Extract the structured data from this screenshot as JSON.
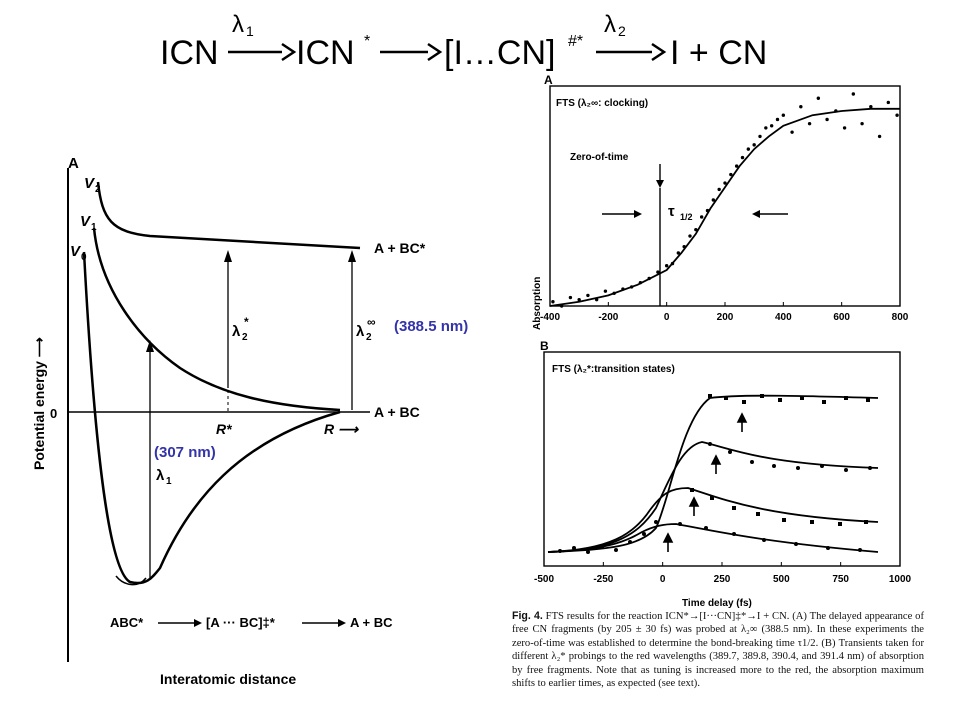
{
  "reaction_scheme": {
    "reactant": "ICN",
    "arrow1_label": "λ",
    "arrow1_sub": "1",
    "excited": "ICN",
    "excited_sup": "*",
    "ts_open": "[I…CN]",
    "ts_sup": "#*",
    "arrow3_label": "λ",
    "arrow3_sub": "2",
    "products": "I + CN"
  },
  "left_diagram": {
    "panel_label": "A",
    "y_axis_label": "Potential energy ⟶",
    "x_axis_label": "Interatomic distance",
    "curve_v2_label": "V",
    "curve_v2_sub": "2",
    "curve_v1_label": "V",
    "curve_v1_sub": "1",
    "curve_v0_label": "V",
    "curve_v0_sub": "0",
    "asymptote_upper": "A + BC*",
    "asymptote_lower": "A + BC",
    "zero_label": "0",
    "r_star_label": "R*",
    "r_label": "R ⟶",
    "lambda2_star_label": "λ",
    "lambda2_star_sub": "2",
    "lambda2_star_sup": "*",
    "lambda2_inf_label": "λ",
    "lambda2_inf_sub": "2",
    "lambda2_inf_sup": "∞",
    "lambda1_label": "λ",
    "lambda1_sub": "1",
    "annot_388": "(388.5 nm)",
    "annot_307": "(307 nm)",
    "scheme_left": "ABC*",
    "scheme_middle": "[A ··· BC]‡*",
    "scheme_right": "A + BC"
  },
  "chart_data": [
    {
      "type": "scatter",
      "panel": "A",
      "title": "FTS (λ₂∞: clocking)",
      "xlabel": "",
      "ylabel": "Absorption",
      "xlim": [
        -400,
        800
      ],
      "ylim": [
        0,
        1
      ],
      "xticks": [
        -400,
        -200,
        0,
        200,
        400,
        600,
        800
      ],
      "annotations": [
        "Zero-of-time",
        "τ 1/2"
      ],
      "fit": {
        "x": [
          -400,
          -300,
          -200,
          -100,
          0,
          50,
          100,
          150,
          200,
          250,
          300,
          350,
          400,
          500,
          600,
          700,
          800
        ],
        "y": [
          0.0,
          0.02,
          0.05,
          0.1,
          0.17,
          0.25,
          0.34,
          0.46,
          0.56,
          0.66,
          0.74,
          0.8,
          0.85,
          0.9,
          0.92,
          0.93,
          0.93
        ]
      },
      "points": {
        "x": [
          -390,
          -360,
          -330,
          -300,
          -270,
          -240,
          -210,
          -180,
          -150,
          -120,
          -90,
          -60,
          -30,
          0,
          20,
          40,
          60,
          80,
          100,
          120,
          140,
          160,
          180,
          200,
          220,
          240,
          260,
          280,
          300,
          320,
          340,
          360,
          380,
          400,
          430,
          460,
          490,
          520,
          550,
          580,
          610,
          640,
          670,
          700,
          730,
          760,
          790
        ],
        "y": [
          0.02,
          0.0,
          0.04,
          0.03,
          0.05,
          0.03,
          0.07,
          0.06,
          0.08,
          0.09,
          0.11,
          0.13,
          0.16,
          0.19,
          0.2,
          0.25,
          0.28,
          0.33,
          0.36,
          0.42,
          0.45,
          0.5,
          0.55,
          0.58,
          0.62,
          0.66,
          0.7,
          0.74,
          0.76,
          0.8,
          0.84,
          0.85,
          0.88,
          0.9,
          0.82,
          0.94,
          0.86,
          0.98,
          0.88,
          0.92,
          0.84,
          1.0,
          0.86,
          0.94,
          0.8,
          0.96,
          0.9
        ]
      }
    },
    {
      "type": "scatter",
      "panel": "B",
      "title": "FTS (λ₂*:transition states)",
      "xlabel": "Time delay (fs)",
      "ylabel": "",
      "xlim": [
        -500,
        1000
      ],
      "xticks": [
        -500,
        -250,
        0,
        250,
        500,
        750,
        1000
      ]
    }
  ],
  "right_figure": {
    "panel_a_label": "A",
    "panel_b_label": "B",
    "tau_symbol": "τ",
    "tau_sub": "1/2"
  },
  "caption": {
    "label": "Fig. 4.",
    "text": "FTS results for the reaction ICN*→[I···CN]‡*→I + CN. (A) The delayed appearance of free CN fragments (by 205 ± 30 fs) was probed at λ₂∞ (388.5 nm). In these experiments the zero-of-time was established to determine the bond-breaking time τ1/2. (B) Transients taken for different λ₂* probings to the red wavelengths (389.7, 389.8, 390.4, and 391.4 nm) of absorption by free fragments. Note that as tuning is increased more to the red, the absorption maximum shifts to earlier times, as expected (see text)."
  },
  "colors": {
    "annotation": "#3333aa",
    "ink": "#000000"
  }
}
